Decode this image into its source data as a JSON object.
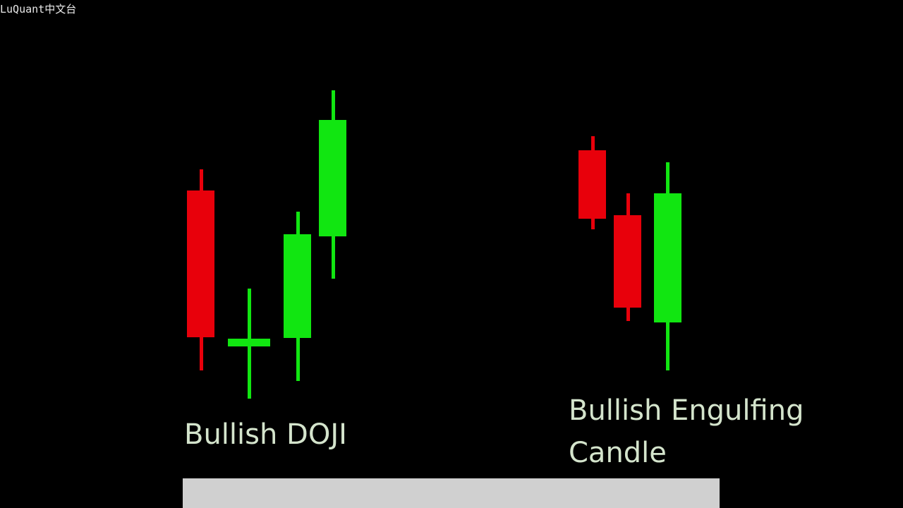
{
  "watermark": "LuQuant中文台",
  "labels": {
    "doji": "Bullish DOJI",
    "engulfing": [
      "Bullish Engulfing",
      "Candle"
    ]
  }
}
